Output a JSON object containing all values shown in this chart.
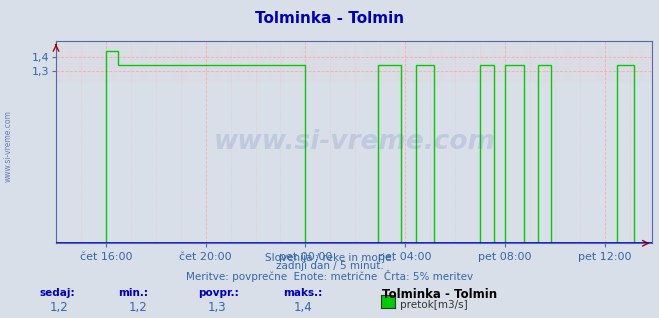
{
  "title": "Tolminka - Tolmin",
  "title_color": "#0000bb",
  "bg_color": "#d8dfe8",
  "plot_bg_color": "#d8dfe8",
  "line_color": "#00cc00",
  "grid_color": "#ffaaaa",
  "axis_color": "#0000cc",
  "watermark_color": "#3355aa",
  "xlabel_color": "#3366aa",
  "ylabel_left_text": "www.si-vreme.com",
  "footer_line1": "Slovenija / reke in morje.",
  "footer_line2": "zadnji dan / 5 minut.",
  "footer_line3": "Meritve: povprečne  Enote: metrične  Črta: 5% meritev",
  "bottom_labels": [
    "sedaj:",
    "min.:",
    "povpr.:",
    "maks.:"
  ],
  "bottom_values": [
    "1,2",
    "1,2",
    "1,3",
    "1,4"
  ],
  "bottom_series_name": "Tolminka - Tolmin",
  "bottom_series_label": "pretok[m3/s]",
  "bottom_series_color": "#00cc00",
  "xticklabels": [
    "čet 16:00",
    "čet 20:00",
    "pet 00:00",
    "pet 04:00",
    "pet 08:00",
    "pet 12:00"
  ],
  "ylim": [
    1.2,
    1.5
  ],
  "yticks": [
    1.3,
    1.4
  ],
  "ytick_labels": [
    "1,3",
    "1,4"
  ],
  "arrow_color": "#aa0000",
  "watermark": "www.si-vreme.com",
  "watermark_alpha": 0.15,
  "n_points": 288,
  "baseline_color": "#0000cc",
  "spine_color": "#5566aa"
}
